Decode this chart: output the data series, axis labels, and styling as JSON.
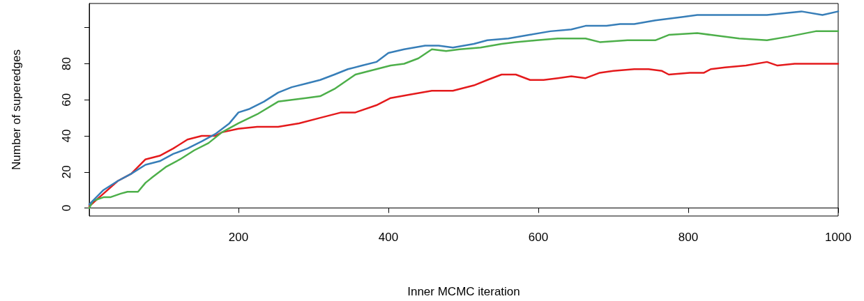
{
  "chart_data": {
    "type": "line",
    "xlabel": "Inner MCMC iteration",
    "ylabel": "Number of superedges",
    "xlim": [
      1,
      1000
    ],
    "xticks": [
      200,
      400,
      600,
      800,
      1000
    ],
    "ylim": [
      -4.4,
      113.4
    ],
    "yticks": [
      0,
      20,
      40,
      60,
      80,
      {
        "value": 100,
        "label": null
      }
    ],
    "marker": "none",
    "line_style": "solid",
    "series": [
      {
        "color": "#e41a1c",
        "x": [
          1,
          20,
          39,
          57,
          76,
          95,
          113,
          132,
          151,
          169,
          178,
          200,
          225,
          253,
          281,
          309,
          337,
          356,
          384,
          403,
          430,
          458,
          486,
          514,
          532,
          551,
          570,
          589,
          607,
          626,
          644,
          663,
          682,
          700,
          728,
          747,
          765,
          774,
          802,
          821,
          830,
          849,
          877,
          905,
          919,
          942,
          1000
        ],
        "values": [
          1,
          8,
          15,
          19,
          27,
          29,
          33,
          38,
          40,
          40,
          42,
          44,
          45,
          45,
          47,
          50,
          53,
          53,
          57,
          61,
          63,
          65,
          65,
          68,
          71,
          74,
          74,
          71,
          71,
          72,
          73,
          72,
          75,
          76,
          77,
          77,
          76,
          74,
          75,
          75,
          77,
          78,
          79,
          81,
          79,
          80,
          80
        ]
      },
      {
        "color": "#4daf4a",
        "x": [
          1,
          6,
          20,
          29,
          43,
          52,
          66,
          76,
          85,
          104,
          122,
          141,
          160,
          178,
          200,
          225,
          253,
          290,
          309,
          328,
          356,
          384,
          403,
          421,
          440,
          458,
          477,
          495,
          523,
          551,
          570,
          598,
          626,
          663,
          682,
          719,
          756,
          774,
          812,
          830,
          868,
          905,
          933,
          970,
          1000
        ],
        "values": [
          0,
          4,
          6,
          6,
          8,
          9,
          9,
          14,
          17,
          23,
          27,
          32,
          36,
          42,
          47,
          52,
          59,
          61,
          62,
          66,
          74,
          77,
          79,
          80,
          83,
          88,
          87,
          88,
          89,
          91,
          92,
          93,
          94,
          94,
          92,
          93,
          93,
          96,
          97,
          96,
          94,
          93,
          95,
          98,
          98
        ]
      },
      {
        "color": "#377eb8",
        "x": [
          1,
          20,
          39,
          57,
          76,
          95,
          113,
          132,
          151,
          169,
          188,
          200,
          215,
          234,
          253,
          271,
          290,
          309,
          328,
          346,
          365,
          384,
          400,
          421,
          449,
          467,
          486,
          514,
          532,
          560,
          588,
          616,
          644,
          663,
          691,
          709,
          728,
          756,
          793,
          812,
          849,
          877,
          905,
          951,
          979,
          1000
        ],
        "values": [
          2,
          10,
          15,
          19,
          24,
          26,
          30,
          33,
          37,
          41,
          47,
          53,
          55,
          59,
          64,
          67,
          69,
          71,
          74,
          77,
          79,
          81,
          86,
          88,
          90,
          90,
          89,
          91,
          93,
          94,
          96,
          98,
          99,
          101,
          101,
          102,
          102,
          104,
          106,
          107,
          107,
          107,
          107,
          109,
          107,
          109
        ]
      }
    ]
  }
}
